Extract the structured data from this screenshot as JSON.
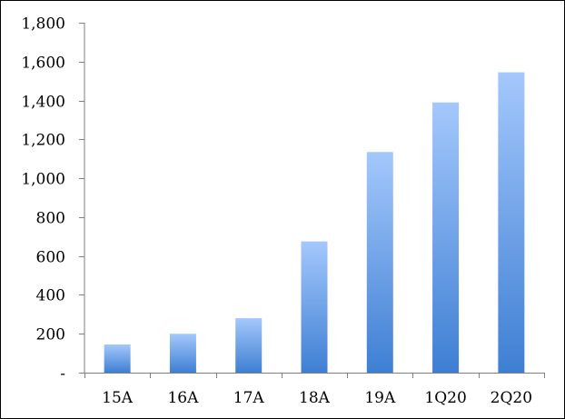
{
  "chart_data": {
    "type": "bar",
    "title": "",
    "xlabel": "",
    "ylabel": "",
    "categories": [
      "15A",
      "16A",
      "17A",
      "18A",
      "19A",
      "1Q20",
      "2Q20"
    ],
    "values": [
      145,
      200,
      280,
      675,
      1135,
      1390,
      1545
    ],
    "ylim": [
      0,
      1800
    ],
    "y_ticks": [
      0,
      200,
      400,
      600,
      800,
      1000,
      1200,
      1400,
      1600,
      1800
    ],
    "y_tick_labels": [
      "-",
      "200",
      "400",
      "600",
      "800",
      "1,000",
      "1,200",
      "1,400",
      "1,600",
      "1,800"
    ],
    "grid": false,
    "legend": "none",
    "bar_color_top": "#a4c8fc",
    "bar_color_bottom": "#3e7fd3"
  }
}
